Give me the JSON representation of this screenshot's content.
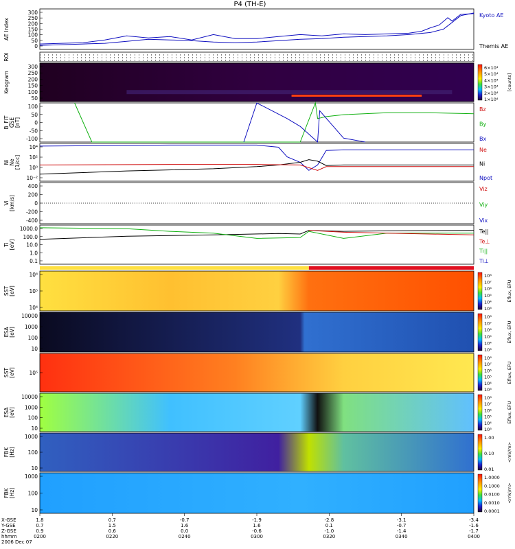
{
  "title": "P4 (TH-E)",
  "colors": {
    "kyoto": "#1010c0",
    "themis": "#000000",
    "bz": "#d01010",
    "by": "#10b010",
    "bx": "#1010c0",
    "ne": "#d01010",
    "ni": "#000000",
    "npot": "#1010c0"
  },
  "chart_data": [
    {
      "type": "line",
      "panel": "ae",
      "ylabel": "AE Index",
      "yticks": [
        "300",
        "250",
        "200",
        "150",
        "100",
        "50",
        "0"
      ],
      "ylim": [
        0,
        300
      ],
      "legend": [
        "Kyoto AE",
        "Themis AE"
      ],
      "series": [
        {
          "name": "Kyoto AE",
          "x": [
            0,
            0.05,
            0.1,
            0.15,
            0.2,
            0.25,
            0.3,
            0.35,
            0.4,
            0.45,
            0.5,
            0.55,
            0.6,
            0.65,
            0.7,
            0.75,
            0.8,
            0.85,
            0.88,
            0.9,
            0.92,
            0.94,
            0.95,
            0.97,
            1.0
          ],
          "values": [
            40,
            45,
            50,
            70,
            100,
            85,
            95,
            70,
            110,
            80,
            80,
            95,
            110,
            100,
            115,
            110,
            115,
            120,
            135,
            160,
            180,
            235,
            210,
            260,
            265
          ]
        },
        {
          "name": "Themis AE",
          "x": [
            0,
            0.05,
            0.1,
            0.15,
            0.2,
            0.25,
            0.3,
            0.35,
            0.4,
            0.45,
            0.5,
            0.55,
            0.6,
            0.65,
            0.7,
            0.75,
            0.8,
            0.85,
            0.9,
            0.93,
            0.95,
            0.97,
            1.0
          ],
          "values": [
            30,
            35,
            40,
            45,
            60,
            75,
            70,
            65,
            55,
            50,
            55,
            65,
            75,
            80,
            90,
            95,
            100,
            110,
            125,
            150,
            200,
            250,
            270
          ]
        }
      ]
    },
    {
      "type": "heatmap",
      "panel": "roi",
      "ylabel": "ROI"
    },
    {
      "type": "heatmap",
      "panel": "keogram",
      "ylabel": "Keogram",
      "yticks": [
        "300",
        "250",
        "200",
        "150",
        "100",
        "50"
      ],
      "colorbar_ticks": [
        "6×10⁴",
        "5×10⁴",
        "4×10⁴",
        "3×10⁴",
        "2×10⁴",
        "1×10⁴"
      ],
      "colorbar_label": "[counts]"
    },
    {
      "type": "line",
      "panel": "bfield",
      "ylabel": "B_FIT",
      "ylabel2": "GSE",
      "ylabel3": "[nT]",
      "yticks": [
        "100",
        "50",
        "0",
        "-50",
        "-100"
      ],
      "ylim": [
        -100,
        100
      ],
      "legend": [
        "Bz",
        "By",
        "Bx"
      ],
      "series": [
        {
          "name": "By",
          "x": [
            0.08,
            0.12,
            0.6,
            0.635,
            0.64,
            0.66,
            0.7,
            0.8,
            0.9,
            1.0
          ],
          "values": [
            100,
            -100,
            -100,
            100,
            20,
            30,
            40,
            50,
            50,
            45
          ]
        },
        {
          "name": "Bx",
          "x": [
            0.47,
            0.5,
            0.57,
            0.6,
            0.63,
            0.64,
            0.645,
            0.7,
            0.75
          ],
          "values": [
            -100,
            100,
            20,
            -20,
            -80,
            -100,
            60,
            -80,
            -100
          ]
        }
      ]
    },
    {
      "type": "line",
      "panel": "density",
      "ylabel": "Ni",
      "ylabel2": "Ne",
      "ylabel3": "[1/cc]",
      "yticks": [
        "10⁴",
        "10²",
        "10⁰",
        "10⁻²"
      ],
      "legend": [
        "Ne",
        "Ni",
        "Npot"
      ],
      "series": [
        {
          "name": "Npot",
          "x": [
            0,
            0.3,
            0.5,
            0.55,
            0.57,
            0.6,
            0.62,
            0.64,
            0.66,
            0.7,
            1.0
          ],
          "values": [
            4,
            4.2,
            4.2,
            3.8,
            2,
            1,
            -0.5,
            0.5,
            3.2,
            3.3,
            3.3
          ]
        },
        {
          "name": "Ni",
          "x": [
            0,
            0.2,
            0.4,
            0.5,
            0.55,
            0.6,
            0.62,
            0.64,
            0.66,
            0.7,
            0.8,
            1.0
          ],
          "values": [
            -1.2,
            -0.6,
            -0.2,
            0.2,
            0.5,
            1,
            1.5,
            1.2,
            0.4,
            0.5,
            0.5,
            0.5
          ]
        },
        {
          "name": "Ne",
          "x": [
            0,
            0.3,
            0.5,
            0.6,
            0.64,
            0.66,
            0.7,
            1.0
          ],
          "values": [
            0.5,
            0.6,
            0.6,
            0.5,
            -0.5,
            0.2,
            0.2,
            0.2
          ]
        }
      ]
    },
    {
      "type": "line",
      "panel": "velocity",
      "ylabel": "Vi",
      "ylabel2": "[km/s]",
      "yticks": [
        "400",
        "200",
        "0",
        "-200",
        "-400"
      ],
      "ylim": [
        -400,
        400
      ],
      "legend": [
        "Viz",
        "Viy",
        "Vix"
      ]
    },
    {
      "type": "line",
      "panel": "temperature",
      "ylabel": "Ti",
      "ylabel2": "[eV]",
      "yticks": [
        "1000.0",
        "100.0",
        "10.0",
        "1.0",
        "0.1"
      ],
      "legend": [
        "Te||",
        "Te⊥",
        "Ti||",
        "Ti⊥"
      ],
      "series": [
        {
          "name": "Te||",
          "x": [
            0,
            0.2,
            0.4,
            0.55,
            0.6,
            0.62,
            0.7,
            0.8,
            1.0
          ],
          "values": [
            1.6,
            1.95,
            2.1,
            2.25,
            2.2,
            2.6,
            2.5,
            2.55,
            2.6
          ]
        },
        {
          "name": "Ti||",
          "x": [
            0,
            0.2,
            0.3,
            0.4,
            0.5,
            0.6,
            0.62,
            0.7,
            0.8,
            1.0
          ],
          "values": [
            2.9,
            2.8,
            2.5,
            2.3,
            1.7,
            1.8,
            2.5,
            1.7,
            2.3,
            2.3
          ]
        },
        {
          "name": "Te⊥",
          "x": [
            0.62,
            0.7,
            0.8,
            1.0
          ],
          "values": [
            2.6,
            2.4,
            2.3,
            2.1
          ]
        }
      ]
    },
    {
      "type": "heatmap",
      "panel": "sst_ion",
      "ylabel": "SST",
      "ylabel2": "[eV]",
      "yticks": [
        "10⁶",
        "10⁵",
        "10⁴"
      ],
      "colorbar_ticks": [
        "10⁸",
        "10⁷",
        "10⁶",
        "10⁵",
        "10⁴",
        "10³"
      ],
      "colorbar_label": "Eflux, EFU"
    },
    {
      "type": "heatmap",
      "panel": "esa_ion",
      "ylabel": "ESA",
      "ylabel2": "[eV]",
      "yticks": [
        "10000",
        "1000",
        "100",
        "10"
      ],
      "colorbar_ticks": [
        "10⁸",
        "10⁷",
        "10⁶",
        "10⁵",
        "10⁴",
        "10³"
      ],
      "colorbar_label": "Eflux, EFU"
    },
    {
      "type": "heatmap",
      "panel": "sst_elec",
      "ylabel": "SST",
      "ylabel2": "[eV]",
      "yticks": [
        "10⁵"
      ],
      "colorbar_ticks": [
        "10⁸",
        "10⁷",
        "10⁶",
        "10⁵",
        "10⁴",
        "10³"
      ],
      "colorbar_label": "Eflux, EFU"
    },
    {
      "type": "heatmap",
      "panel": "esa_elec",
      "ylabel": "ESA",
      "ylabel2": "[eV]",
      "yticks": [
        "10000",
        "1000",
        "100",
        "10"
      ],
      "colorbar_ticks": [
        "10⁸",
        "10⁷",
        "10⁶",
        "10⁵",
        "10⁴",
        "10³"
      ],
      "colorbar_label": "Eflux, EFU"
    },
    {
      "type": "heatmap",
      "panel": "fbk_e",
      "ylabel": "FBK",
      "ylabel2": "[Hz]",
      "yticks": [
        "1000",
        "100",
        "10"
      ],
      "colorbar_ticks": [
        "1.00",
        "0.10",
        "0.01"
      ],
      "colorbar_label": "<mV/m>"
    },
    {
      "type": "heatmap",
      "panel": "fbk_b",
      "ylabel": "FBK",
      "ylabel2": "[Hz]",
      "yticks": [
        "1000",
        "100",
        "10"
      ],
      "colorbar_ticks": [
        "1.0000",
        "0.1000",
        "0.0100",
        "0.0010",
        "0.0001"
      ],
      "colorbar_label": "<mV/m>"
    }
  ],
  "xaxis": {
    "row_labels": [
      "X-GSE",
      "Y-GSE",
      "Z-GSE",
      "hhmm",
      "2006 Dec 07"
    ],
    "columns": [
      {
        "x": 0,
        "vals": [
          "1.8",
          "0.7",
          "0.9",
          "0200"
        ]
      },
      {
        "x": 0.2,
        "vals": [
          "0.7",
          "1.5",
          "0.6",
          "0220"
        ]
      },
      {
        "x": 0.4,
        "vals": [
          "-0.7",
          "1.6",
          "0.0",
          "0240"
        ]
      },
      {
        "x": 0.6,
        "vals": [
          "-1.9",
          "1.6",
          "-0.6",
          "0300"
        ]
      },
      {
        "x": 0.8,
        "vals": [
          "-2.8",
          "0.1",
          "-1.0",
          "0320"
        ]
      },
      {
        "x": 1.0,
        "vals": [
          "-3.1",
          "-0.7",
          "-1.4",
          "0340"
        ]
      },
      {
        "x": 1.2,
        "vals": [
          "-3.4",
          "-1.6",
          "-1.7",
          "0400"
        ]
      }
    ]
  }
}
